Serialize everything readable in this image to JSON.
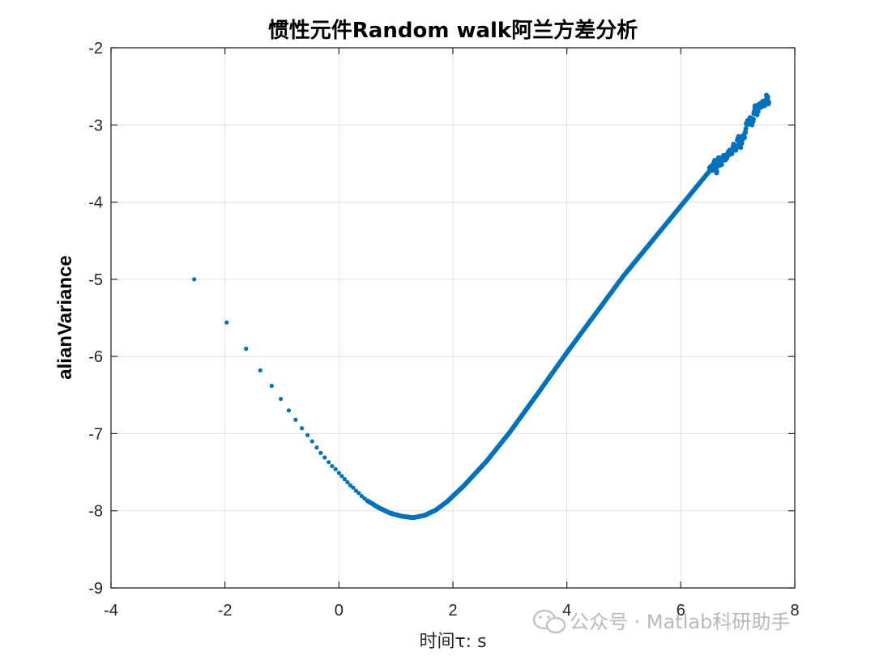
{
  "chart_data": {
    "type": "scatter",
    "title": "惯性元件Random walk阿兰方差分析",
    "xlabel": "时间τ: s",
    "ylabel": "alianVariance",
    "xlim": [
      -4,
      8
    ],
    "ylim": [
      -9,
      -2
    ],
    "xticks": [
      "-4",
      "-2",
      "0",
      "2",
      "4",
      "6",
      "8"
    ],
    "yticks": [
      "-2",
      "-3",
      "-4",
      "-5",
      "-6",
      "-7",
      "-8",
      "-9"
    ],
    "grid": true,
    "color": "#0072BD",
    "series": [
      {
        "sparse_points": [
          [
            -2.54,
            -5.0
          ],
          [
            -1.97,
            -5.56
          ],
          [
            -1.63,
            -5.9
          ],
          [
            -1.38,
            -6.18
          ],
          [
            -1.18,
            -6.38
          ],
          [
            -1.02,
            -6.55
          ],
          [
            -0.88,
            -6.7
          ],
          [
            -0.76,
            -6.82
          ],
          [
            -0.65,
            -6.93
          ],
          [
            -0.55,
            -7.02
          ],
          [
            -0.47,
            -7.1
          ],
          [
            -0.39,
            -7.18
          ],
          [
            -0.32,
            -7.25
          ],
          [
            -0.25,
            -7.31
          ],
          [
            -0.18,
            -7.37
          ],
          [
            -0.12,
            -7.42
          ],
          [
            -0.06,
            -7.46
          ],
          [
            0.0,
            -7.51
          ],
          [
            0.05,
            -7.55
          ],
          [
            0.1,
            -7.59
          ],
          [
            0.15,
            -7.63
          ],
          [
            0.2,
            -7.67
          ],
          [
            0.25,
            -7.7
          ],
          [
            0.3,
            -7.74
          ],
          [
            0.35,
            -7.77
          ],
          [
            0.4,
            -7.81
          ],
          [
            0.45,
            -7.84
          ],
          [
            0.5,
            -7.87
          ]
        ],
        "curve": [
          [
            0.5,
            -7.87
          ],
          [
            0.7,
            -7.96
          ],
          [
            0.9,
            -8.03
          ],
          [
            1.1,
            -8.07
          ],
          [
            1.3,
            -8.09
          ],
          [
            1.5,
            -8.06
          ],
          [
            1.7,
            -7.99
          ],
          [
            1.9,
            -7.88
          ],
          [
            2.2,
            -7.67
          ],
          [
            2.6,
            -7.35
          ],
          [
            3.0,
            -6.98
          ],
          [
            3.5,
            -6.47
          ],
          [
            4.0,
            -5.95
          ],
          [
            4.5,
            -5.45
          ],
          [
            5.0,
            -4.95
          ],
          [
            5.5,
            -4.5
          ],
          [
            6.0,
            -4.05
          ],
          [
            6.5,
            -3.6
          ]
        ],
        "noisy_tail": [
          [
            6.5,
            -3.6
          ],
          [
            6.55,
            -3.55
          ],
          [
            6.6,
            -3.5
          ],
          [
            6.63,
            -3.58
          ],
          [
            6.67,
            -3.45
          ],
          [
            6.72,
            -3.5
          ],
          [
            6.76,
            -3.38
          ],
          [
            6.8,
            -3.46
          ],
          [
            6.84,
            -3.32
          ],
          [
            6.88,
            -3.4
          ],
          [
            6.92,
            -3.25
          ],
          [
            6.95,
            -3.35
          ],
          [
            7.0,
            -3.18
          ],
          [
            7.05,
            -3.25
          ],
          [
            7.1,
            -3.17
          ],
          [
            7.15,
            -3.02
          ],
          [
            7.2,
            -2.92
          ],
          [
            7.25,
            -2.97
          ],
          [
            7.3,
            -2.8
          ],
          [
            7.35,
            -2.83
          ],
          [
            7.4,
            -2.72
          ],
          [
            7.45,
            -2.75
          ],
          [
            7.5,
            -2.65
          ],
          [
            7.55,
            -2.7
          ]
        ]
      }
    ]
  },
  "watermark": {
    "text": "公众号 · Matlab科研助手",
    "icon": "wechat-icon"
  }
}
